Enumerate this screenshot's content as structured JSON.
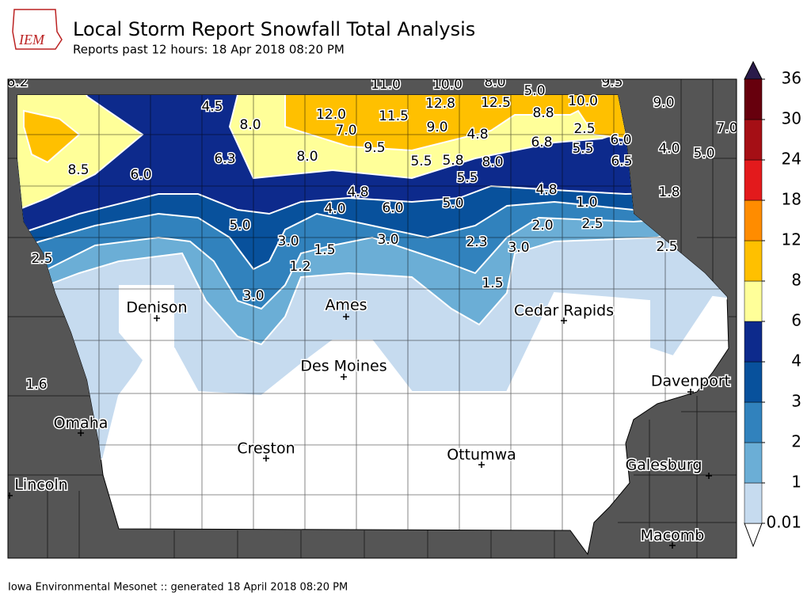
{
  "logo": "IEM",
  "header": {
    "title": "Local Storm Report Snowfall Total Analysis",
    "subtitle": "Reports past 12 hours: 18 Apr 2018 08:20 PM"
  },
  "reports": [
    "6.2",
    "11.0",
    "10.0",
    "8.0",
    "9.5",
    "4.5",
    "8.0",
    "12.0",
    "7.0",
    "11.5",
    "12.8",
    "12.5",
    "5.0",
    "10.0",
    "9.0",
    "8.8",
    "9.0",
    "4.8",
    "2.5",
    "6.0",
    "7.0",
    "9.5",
    "8.5",
    "6.0",
    "6.3",
    "8.0",
    "5.5",
    "5.8",
    "8.0",
    "6.8",
    "5.5",
    "6.5",
    "4.0",
    "5.0",
    "5.5",
    "4.8",
    "4.8",
    "1.8",
    "4.0",
    "6.0",
    "5.0",
    "1.0",
    "5.0",
    "2.0",
    "2.5",
    "3.0",
    "1.5",
    "3.0",
    "2.3",
    "3.0",
    "2.5",
    "2.5",
    "1.2",
    "1.5",
    "3.0",
    "1.6"
  ],
  "cities": [
    "Denison",
    "Ames",
    "Cedar Rapids",
    "Des Moines",
    "Davenport",
    "Omaha",
    "Creston",
    "Ottumwa",
    "Galesburg",
    "Lincoln",
    "Macomb"
  ],
  "legend": {
    "levels": [
      0.01,
      1,
      2,
      3,
      4,
      6,
      8,
      12,
      18,
      24,
      30,
      36
    ],
    "colors": [
      "#c6dbef",
      "#6baed6",
      "#3182bd",
      "#08519c",
      "#0d2a8c",
      "#ffff99",
      "#ffc000",
      "#ff8c00",
      "#e31a1c",
      "#a50f15",
      "#67000d"
    ]
  },
  "footer": "Iowa Environmental Mesonet :: generated 18 April 2018 08:20 PM"
}
